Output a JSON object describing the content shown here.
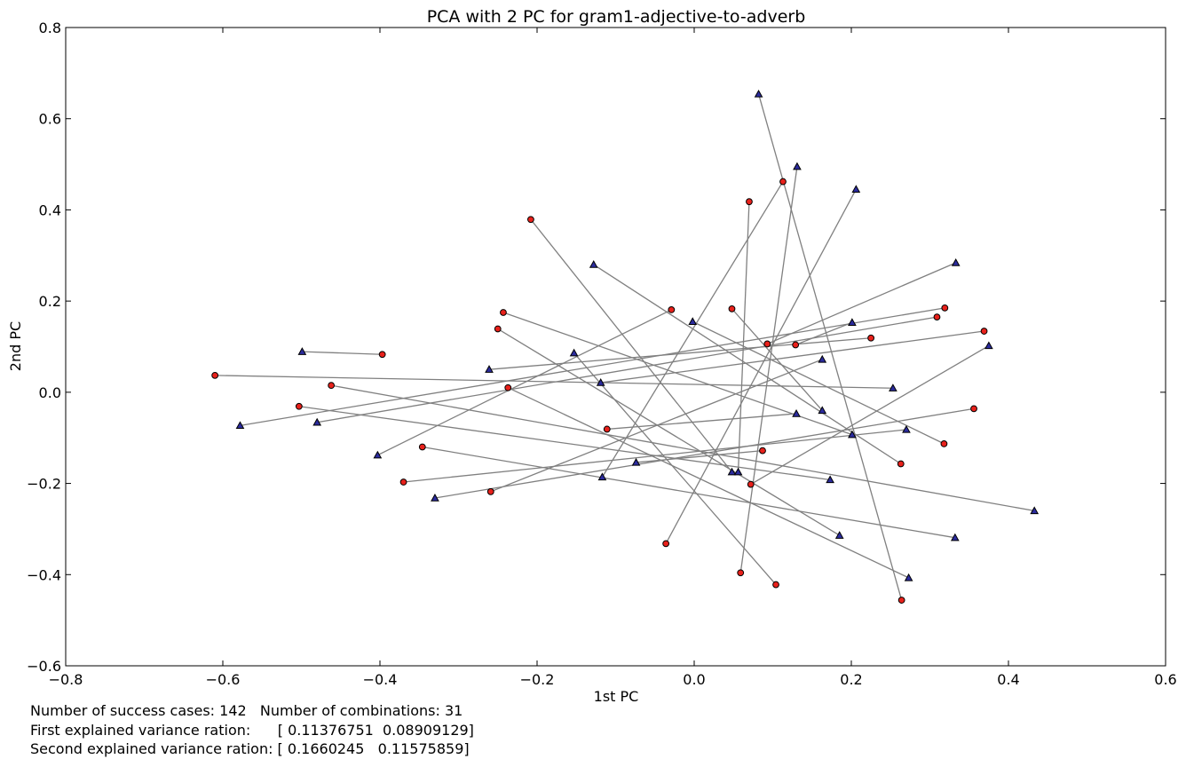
{
  "chart_data": {
    "type": "scatter",
    "title": "PCA with 2 PC for gram1-adjective-to-adverb",
    "xlabel": "1st PC",
    "ylabel": "2nd PC",
    "xlim": [
      -0.8,
      0.6
    ],
    "ylim": [
      -0.6,
      0.8
    ],
    "x_ticks": [
      -0.8,
      -0.6,
      -0.4,
      -0.2,
      0.0,
      0.2,
      0.4,
      0.6
    ],
    "y_ticks": [
      -0.6,
      -0.4,
      -0.2,
      0.0,
      0.2,
      0.4,
      0.6,
      0.8
    ],
    "x_tick_labels": [
      "−0.8",
      "−0.6",
      "−0.4",
      "−0.2",
      "0.0",
      "0.2",
      "0.4",
      "0.6"
    ],
    "y_tick_labels": [
      "−0.6",
      "−0.4",
      "−0.2",
      "0.0",
      "0.2",
      "0.4",
      "0.6",
      "0.8"
    ],
    "grid": false,
    "colors": {
      "circle_fill": "#e8211b",
      "triangle_fill": "#2b2b9e",
      "line": "#808080"
    },
    "pairs": [
      {
        "circle": [
          -0.61,
          0.037
        ],
        "triangle": [
          0.253,
          0.009
        ]
      },
      {
        "circle": [
          -0.397,
          0.083
        ],
        "triangle": [
          -0.499,
          0.089
        ]
      },
      {
        "circle": [
          -0.462,
          0.015
        ],
        "triangle": [
          0.433,
          -0.26
        ]
      },
      {
        "circle": [
          -0.503,
          -0.031
        ],
        "triangle": [
          0.173,
          -0.192
        ]
      },
      {
        "circle": [
          -0.346,
          -0.12
        ],
        "triangle": [
          0.332,
          -0.319
        ]
      },
      {
        "circle": [
          -0.37,
          -0.197
        ],
        "triangle": [
          0.27,
          -0.082
        ]
      },
      {
        "circle": [
          -0.259,
          -0.218
        ],
        "triangle": [
          0.163,
          0.072
        ]
      },
      {
        "circle": [
          -0.036,
          -0.332
        ],
        "triangle": [
          0.206,
          0.445
        ]
      },
      {
        "circle": [
          0.059,
          -0.396
        ],
        "triangle": [
          0.131,
          0.495
        ]
      },
      {
        "circle": [
          0.104,
          -0.422
        ],
        "triangle": [
          -0.153,
          0.086
        ]
      },
      {
        "circle": [
          0.264,
          -0.456
        ],
        "triangle": [
          0.082,
          0.654
        ]
      },
      {
        "circle": [
          -0.208,
          0.379
        ],
        "triangle": [
          0.048,
          -0.175
        ]
      },
      {
        "circle": [
          0.07,
          0.418
        ],
        "triangle": [
          0.056,
          -0.175
        ]
      },
      {
        "circle": [
          0.113,
          0.462
        ],
        "triangle": [
          -0.117,
          -0.186
        ]
      },
      {
        "circle": [
          -0.243,
          0.175
        ],
        "triangle": [
          0.201,
          -0.093
        ]
      },
      {
        "circle": [
          -0.25,
          0.139
        ],
        "triangle": [
          0.185,
          -0.314
        ]
      },
      {
        "circle": [
          -0.029,
          0.181
        ],
        "triangle": [
          -0.403,
          -0.138
        ]
      },
      {
        "circle": [
          -0.237,
          0.01
        ],
        "triangle": [
          0.273,
          -0.407
        ]
      },
      {
        "circle": [
          0.048,
          0.183
        ],
        "triangle": [
          0.163,
          -0.04
        ]
      },
      {
        "circle": [
          0.093,
          0.106
        ],
        "triangle": [
          0.333,
          0.284
        ]
      },
      {
        "circle": [
          0.129,
          0.104
        ],
        "triangle": [
          0.201,
          0.153
        ]
      },
      {
        "circle": [
          0.225,
          0.119
        ],
        "triangle": [
          -0.261,
          0.05
        ]
      },
      {
        "circle": [
          0.309,
          0.165
        ],
        "triangle": [
          -0.48,
          -0.066
        ]
      },
      {
        "circle": [
          0.319,
          0.185
        ],
        "triangle": [
          -0.578,
          -0.073
        ]
      },
      {
        "circle": [
          0.369,
          0.134
        ],
        "triangle": [
          -0.119,
          0.021
        ]
      },
      {
        "circle": [
          0.356,
          -0.036
        ],
        "triangle": [
          -0.33,
          -0.232
        ]
      },
      {
        "circle": [
          0.263,
          -0.157
        ],
        "triangle": [
          -0.128,
          0.28
        ]
      },
      {
        "circle": [
          0.318,
          -0.113
        ],
        "triangle": [
          -0.002,
          0.155
        ]
      },
      {
        "circle": [
          0.087,
          -0.128
        ],
        "triangle": [
          -0.074,
          -0.154
        ]
      },
      {
        "circle": [
          0.072,
          -0.202
        ],
        "triangle": [
          0.375,
          0.102
        ]
      },
      {
        "circle": [
          -0.111,
          -0.081
        ],
        "triangle": [
          0.13,
          -0.047
        ]
      }
    ]
  },
  "footer": {
    "line1": "Number of success cases: 142   Number of combinations: 31",
    "line2": "First explained variance ration:      [ 0.11376751  0.08909129]",
    "line3": "Second explained variance ration: [ 0.1660245   0.11575859]"
  }
}
